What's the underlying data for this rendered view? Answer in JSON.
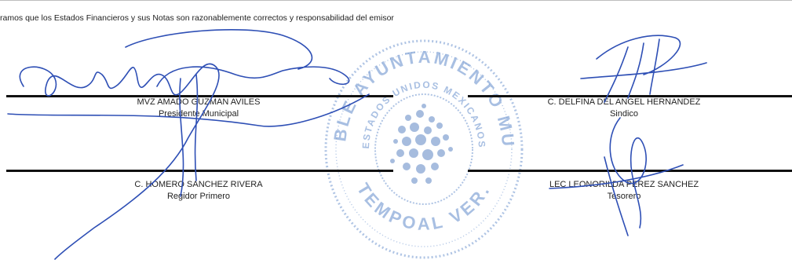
{
  "declaration": "ramos que los Estados Financieros y sus Notas son razonablemente correctos y responsabilidad del emisor",
  "signatories": [
    {
      "name": "MVZ AMADO GUZMAN AVILES",
      "role": "Presidente Municipal"
    },
    {
      "name": "C. DELFINA DEL ANGEL HERNANDEZ",
      "role": "Sindico"
    },
    {
      "name": "C. HOMERO SANCHEZ RIVERA",
      "role": "Regidor Primero"
    },
    {
      "name": "LEC LEONORILDA PEREZ SANCHEZ",
      "role": "Tesorero"
    }
  ],
  "seal": {
    "outer_text": "HONORABLE AYUNTAMIENTO MUNICIPAL",
    "inner_text": "ESTADOS UNIDOS MEXICANOS",
    "bottom_text": "TEMPOAL VER.",
    "color": "#6f95cf"
  },
  "colors": {
    "ink": "#2e4fb5",
    "line": "#111111"
  }
}
